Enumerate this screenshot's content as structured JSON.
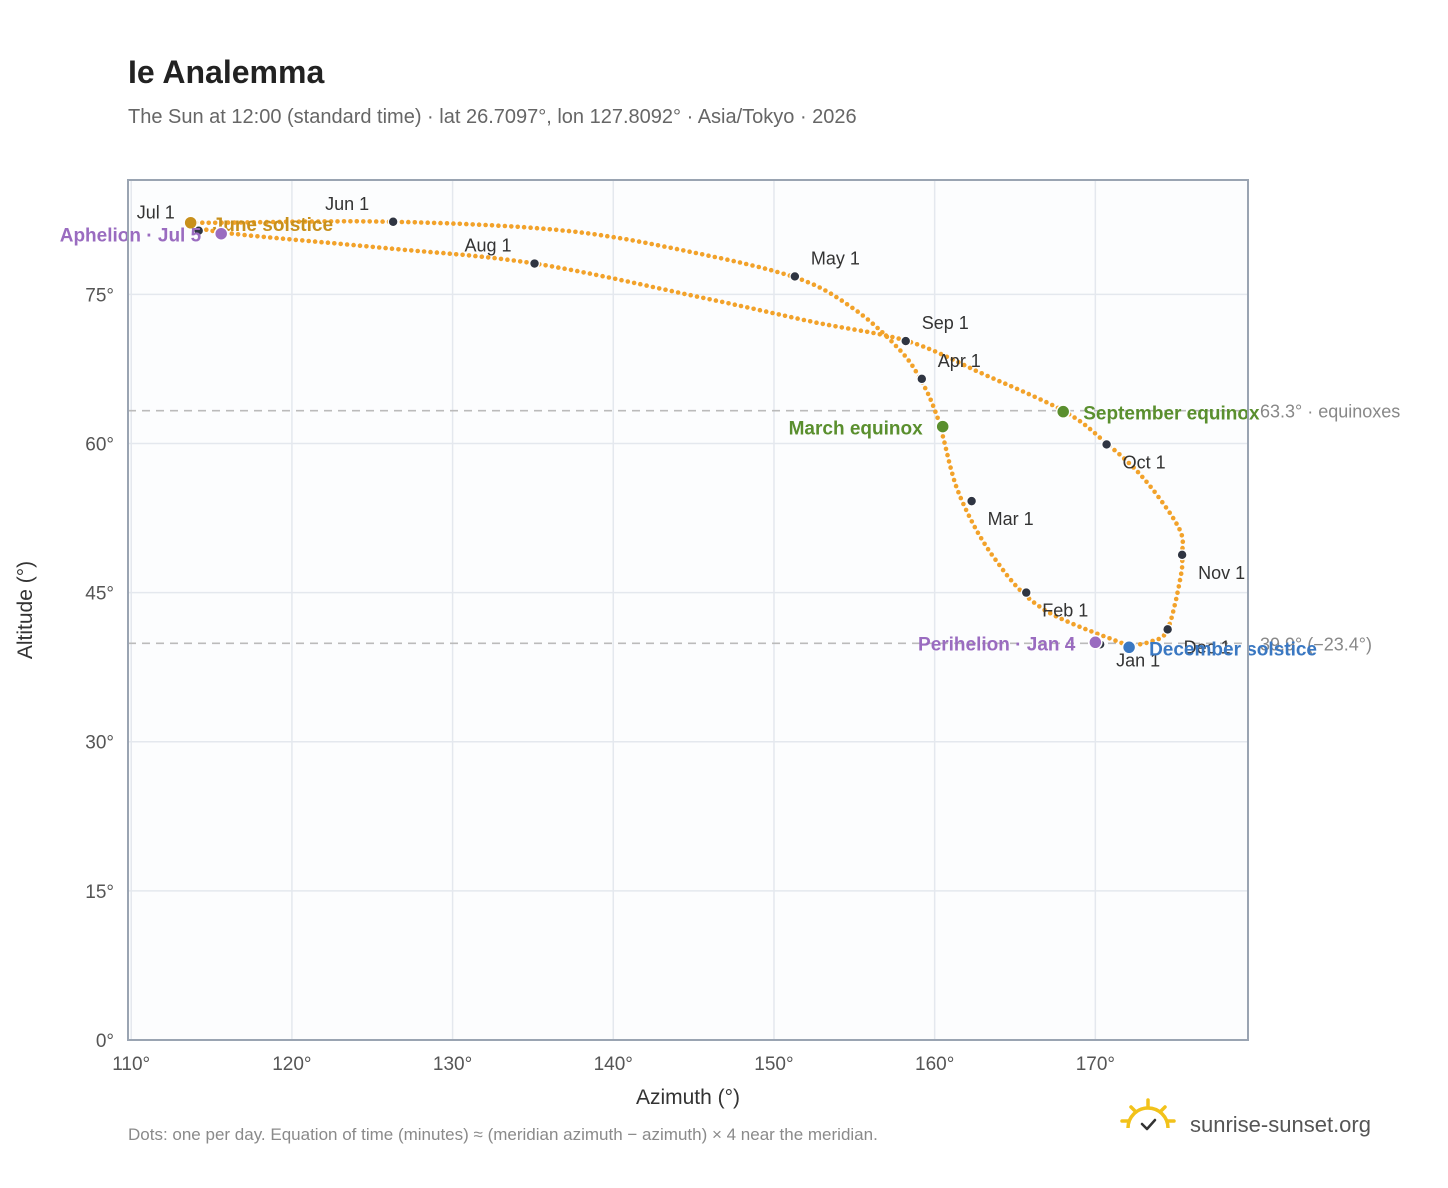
{
  "colors": {
    "curve": "#f2a22a",
    "month_dot": "#2f3542",
    "equinox": "#5a8f2e",
    "june_solstice": "#c8901c",
    "december_solstice": "#3a78c2",
    "apsis": "#9a6cc0",
    "grid": "#e4e8ee",
    "frame": "#9aa4b2",
    "plot_bg": "#fcfdfe",
    "ref_line": "#bbbbbb",
    "brand_icon": "#f2c21a"
  },
  "chart_data": {
    "type": "scatter",
    "title": "Ie Analemma",
    "subtitle": "The Sun at 12:00 (standard time) · lat 26.7097°, lon 127.8092° · Asia/Tokyo · 2026",
    "xlabel": "Azimuth (°)",
    "ylabel": "Altitude (°)",
    "xlim": [
      109.8,
      179.5
    ],
    "ylim": [
      0,
      86.5
    ],
    "xticks": [
      110,
      120,
      130,
      140,
      150,
      160,
      170
    ],
    "xtick_labels": [
      "110°",
      "120°",
      "130°",
      "140°",
      "150°",
      "160°",
      "170°"
    ],
    "yticks": [
      0,
      15,
      30,
      45,
      60,
      75
    ],
    "ytick_labels": [
      "0°",
      "15°",
      "30°",
      "45°",
      "60°",
      "75°"
    ],
    "grid": true,
    "path": [
      [
        172.0,
        39.7
      ],
      [
        166.7,
        43.4
      ],
      [
        163.7,
        48.5
      ],
      [
        161.5,
        55.0
      ],
      [
        160.2,
        62.5
      ],
      [
        159.0,
        66.8
      ],
      [
        157.6,
        69.8
      ],
      [
        155.0,
        73.5
      ],
      [
        151.5,
        76.6
      ],
      [
        145.0,
        79.2
      ],
      [
        137.0,
        81.4
      ],
      [
        126.3,
        82.3
      ],
      [
        115.3,
        82.2
      ],
      [
        113.7,
        82.2
      ],
      [
        115.8,
        81.2
      ],
      [
        125.5,
        79.7
      ],
      [
        135.1,
        78.1
      ],
      [
        146.0,
        74.5
      ],
      [
        152.5,
        72.2
      ],
      [
        158.3,
        70.3
      ],
      [
        163.0,
        67.0
      ],
      [
        168.1,
        63.2
      ],
      [
        170.7,
        60.0
      ],
      [
        173.0,
        56.5
      ],
      [
        175.2,
        51.5
      ],
      [
        175.4,
        48.8
      ],
      [
        175.3,
        46.5
      ],
      [
        174.5,
        41.3
      ],
      [
        173.5,
        40.1
      ],
      [
        172.0,
        39.6
      ]
    ],
    "months": [
      {
        "label": "Jan 1",
        "x": 170.3,
        "y": 39.8
      },
      {
        "label": "Feb 1",
        "x": 165.7,
        "y": 45.0
      },
      {
        "label": "Mar 1",
        "x": 162.3,
        "y": 54.2
      },
      {
        "label": "Apr 1",
        "x": 159.2,
        "y": 66.5
      },
      {
        "label": "May 1",
        "x": 151.3,
        "y": 76.8
      },
      {
        "label": "Jun 1",
        "x": 126.3,
        "y": 82.3
      },
      {
        "label": "Jul 1",
        "x": 114.2,
        "y": 81.4
      },
      {
        "label": "Aug 1",
        "x": 135.1,
        "y": 78.1
      },
      {
        "label": "Sep 1",
        "x": 158.2,
        "y": 70.3
      },
      {
        "label": "Oct 1",
        "x": 170.7,
        "y": 59.9
      },
      {
        "label": "Nov 1",
        "x": 175.4,
        "y": 48.8
      },
      {
        "label": "Dec 1",
        "x": 174.5,
        "y": 41.3
      }
    ],
    "events": [
      {
        "label": "March equinox",
        "x": 160.5,
        "y": 61.7,
        "color_key": "equinox"
      },
      {
        "label": "September equinox",
        "x": 168.0,
        "y": 63.2,
        "color_key": "equinox"
      },
      {
        "label": "June solstice",
        "x": 113.7,
        "y": 82.2,
        "color_key": "june_solstice"
      },
      {
        "label": "December solstice",
        "x": 172.1,
        "y": 39.5,
        "color_key": "december_solstice"
      },
      {
        "label": "Aphelion · Jul 5",
        "x": 115.6,
        "y": 81.1,
        "color_key": "apsis"
      },
      {
        "label": "Perihelion · Jan 4",
        "x": 170.0,
        "y": 40.0,
        "color_key": "apsis"
      }
    ],
    "reference_lines": [
      {
        "y": 63.3,
        "label": "63.3° · equinoxes"
      },
      {
        "y": 39.9,
        "label": "39.9° (−23.4°)"
      }
    ]
  },
  "footnote": "Dots: one per day. Equation of time (minutes) ≈ (meridian azimuth − azimuth) × 4 near the meridian.",
  "brand": {
    "name": "sunrise-sunset.org",
    "icon": "sun-check-icon"
  }
}
